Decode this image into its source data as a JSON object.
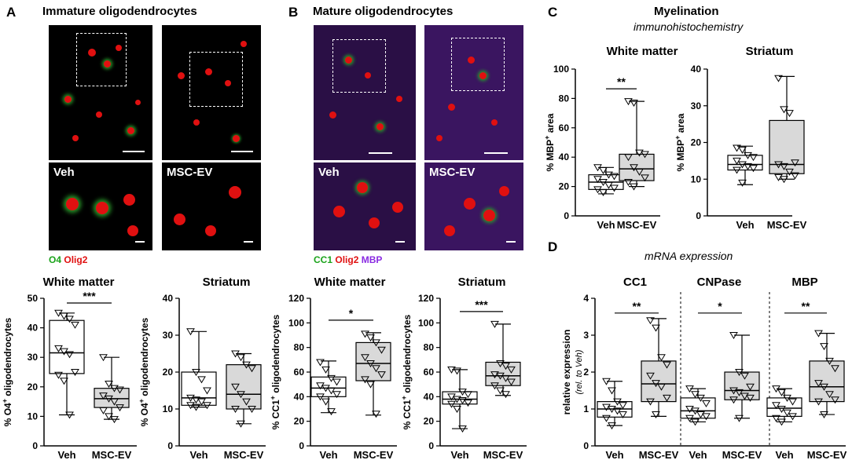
{
  "panels": {
    "A": {
      "letter": "A",
      "title": "Immature oligodendrocytes",
      "image_labels": [
        "Veh",
        "MSC-EV"
      ],
      "legend": [
        {
          "text": "O4",
          "color": "#1aa31a"
        },
        {
          "text": "Olig2",
          "color": "#e01010"
        }
      ]
    },
    "B": {
      "letter": "B",
      "title": "Mature oligodendrocytes",
      "image_labels": [
        "Veh",
        "MSC-EV"
      ],
      "legend": [
        {
          "text": "CC1",
          "color": "#1aa31a"
        },
        {
          "text": "Olig2",
          "color": "#e01010"
        },
        {
          "text": "MBP",
          "color": "#8a2be2"
        }
      ]
    },
    "C": {
      "letter": "C",
      "title": "Myelination",
      "subtitle": "immunohistochemistry"
    },
    "D": {
      "letter": "D",
      "subtitle": "mRNA expression"
    }
  },
  "chart_data": [
    {
      "id": "A1",
      "type": "box",
      "title": "White matter",
      "ylabel": "% O4+ oligodendrocytes",
      "ylim": [
        0,
        50
      ],
      "yticks": [
        0,
        10,
        20,
        30,
        40,
        50
      ],
      "categories": [
        "Veh",
        "MSC-EV"
      ],
      "significance": "***",
      "boxes": [
        {
          "min": 10.5,
          "q1": 24.5,
          "median": 31.5,
          "q3": 42.5,
          "max": 45,
          "fill": "#ffffff",
          "points": [
            45,
            44,
            43,
            41,
            33,
            32,
            31,
            25,
            24,
            22,
            10.5
          ]
        },
        {
          "min": 9,
          "q1": 13,
          "median": 16,
          "q3": 19.5,
          "max": 30,
          "fill": "#d9d9d9",
          "points": [
            30,
            21,
            19.5,
            19,
            17,
            16,
            15,
            13,
            12,
            10,
            9
          ]
        }
      ]
    },
    {
      "id": "A2",
      "type": "box",
      "title": "Striatum",
      "ylabel": "% O4+ oligodendrocytes",
      "ylim": [
        0,
        40
      ],
      "yticks": [
        0,
        10,
        20,
        30,
        40
      ],
      "categories": [
        "Veh",
        "MSC-EV"
      ],
      "significance": "",
      "boxes": [
        {
          "min": 10.5,
          "q1": 11,
          "median": 13,
          "q3": 20,
          "max": 31,
          "fill": "#ffffff",
          "points": [
            31,
            20,
            18,
            15,
            13,
            12.5,
            12,
            11,
            11,
            10.5
          ]
        },
        {
          "min": 6,
          "q1": 10,
          "median": 14,
          "q3": 22,
          "max": 25,
          "fill": "#d9d9d9",
          "points": [
            25,
            24,
            22,
            21,
            16,
            14,
            12,
            10,
            10,
            6
          ]
        }
      ]
    },
    {
      "id": "B1",
      "type": "box",
      "title": "White matter",
      "ylabel": "% CC1+ oligodendrocytes",
      "ylim": [
        0,
        120
      ],
      "yticks": [
        0,
        20,
        40,
        60,
        80,
        100,
        120
      ],
      "categories": [
        "Veh",
        "MSC-EV"
      ],
      "significance": "*",
      "boxes": [
        {
          "min": 27,
          "q1": 40,
          "median": 47,
          "q3": 56,
          "max": 69,
          "fill": "#ffffff",
          "points": [
            68,
            62,
            55,
            52,
            49,
            47,
            45,
            42,
            40,
            36,
            28
          ]
        },
        {
          "min": 25,
          "q1": 53,
          "median": 67,
          "q3": 84,
          "max": 92,
          "fill": "#d9d9d9",
          "points": [
            91,
            88,
            84,
            78,
            72,
            67,
            63,
            58,
            54,
            50,
            26
          ]
        }
      ]
    },
    {
      "id": "B2",
      "type": "box",
      "title": "Striatum",
      "ylabel": "% CC1+ oligodendrocytes",
      "ylim": [
        0,
        120
      ],
      "yticks": [
        0,
        20,
        40,
        60,
        80,
        100,
        120
      ],
      "categories": [
        "Veh",
        "MSC-EV"
      ],
      "significance": "***",
      "boxes": [
        {
          "min": 14,
          "q1": 34,
          "median": 38,
          "q3": 44,
          "max": 62,
          "fill": "#ffffff",
          "points": [
            62,
            61,
            44,
            42,
            40,
            38,
            37,
            35,
            34,
            30,
            14
          ]
        },
        {
          "min": 41,
          "q1": 49,
          "median": 57,
          "q3": 68,
          "max": 99,
          "fill": "#d9d9d9",
          "points": [
            99,
            67,
            65,
            62,
            58,
            57,
            55,
            52,
            49,
            45,
            42
          ]
        }
      ]
    },
    {
      "id": "C1",
      "type": "box",
      "title": "White matter",
      "ylabel": "% MBP+ area",
      "ylim": [
        0,
        100
      ],
      "yticks": [
        0,
        20,
        40,
        60,
        80,
        100
      ],
      "categories": [
        "Veh",
        "MSC-EV"
      ],
      "significance": "**",
      "boxes": [
        {
          "min": 15,
          "q1": 18,
          "median": 23,
          "q3": 28,
          "max": 33,
          "fill": "#ffffff",
          "points": [
            33,
            31,
            28,
            27,
            25,
            23,
            21,
            19,
            18,
            16
          ]
        },
        {
          "min": 20,
          "q1": 24,
          "median": 32,
          "q3": 42,
          "max": 78,
          "fill": "#d9d9d9",
          "points": [
            78,
            77,
            43,
            42,
            40,
            33,
            30,
            26,
            23,
            20
          ]
        }
      ]
    },
    {
      "id": "C2",
      "type": "box",
      "title": "Striatum",
      "ylabel": "% MBP+ area",
      "ylim": [
        0,
        40
      ],
      "yticks": [
        0,
        10,
        20,
        30,
        40
      ],
      "categories": [
        "Veh",
        "MSC-EV"
      ],
      "significance": "",
      "boxes": [
        {
          "min": 8.5,
          "q1": 12.5,
          "median": 14,
          "q3": 16.5,
          "max": 19,
          "fill": "#ffffff",
          "points": [
            18.5,
            18,
            16.5,
            16,
            15,
            14,
            13.5,
            13,
            12.5,
            9
          ]
        },
        {
          "min": 10,
          "q1": 11.5,
          "median": 14,
          "q3": 26,
          "max": 38,
          "fill": "#d9d9d9",
          "points": [
            37.5,
            29,
            28,
            14.5,
            14,
            13.5,
            12,
            11,
            10.5,
            10
          ]
        }
      ]
    },
    {
      "id": "D",
      "type": "box",
      "title": "",
      "ylabel": "relative expression",
      "ylabel2": "(rel. to Veh)",
      "ylim": [
        0,
        4
      ],
      "yticks": [
        0,
        1,
        2,
        3,
        4
      ],
      "groups": [
        {
          "name": "CC1",
          "significance": "**",
          "categories": [
            "Veh",
            "MSC-EV"
          ],
          "boxes": [
            {
              "min": 0.55,
              "q1": 0.78,
              "median": 1.0,
              "q3": 1.2,
              "max": 1.75,
              "fill": "#ffffff",
              "points": [
                1.75,
                1.5,
                1.2,
                1.1,
                1.05,
                1.0,
                0.95,
                0.85,
                0.75,
                0.55
              ]
            },
            {
              "min": 0.8,
              "q1": 1.2,
              "median": 1.68,
              "q3": 2.3,
              "max": 3.45,
              "fill": "#d9d9d9",
              "points": [
                3.4,
                3.2,
                2.4,
                2.2,
                1.9,
                1.7,
                1.6,
                1.3,
                1.2,
                0.85
              ]
            }
          ]
        },
        {
          "name": "CNPase",
          "significance": "*",
          "categories": [
            "Veh",
            "MSC-EV"
          ],
          "boxes": [
            {
              "min": 0.65,
              "q1": 0.75,
              "median": 0.95,
              "q3": 1.3,
              "max": 1.55,
              "fill": "#ffffff",
              "points": [
                1.55,
                1.4,
                1.3,
                1.15,
                1.0,
                0.95,
                0.85,
                0.8,
                0.75,
                0.65
              ]
            },
            {
              "min": 0.75,
              "q1": 1.25,
              "median": 1.5,
              "q3": 2.0,
              "max": 3.0,
              "fill": "#d9d9d9",
              "points": [
                3.0,
                2.0,
                1.9,
                1.6,
                1.5,
                1.45,
                1.35,
                1.3,
                1.25,
                0.75
              ]
            }
          ]
        },
        {
          "name": "MBP",
          "significance": "**",
          "categories": [
            "Veh",
            "MSC-EV"
          ],
          "boxes": [
            {
              "min": 0.65,
              "q1": 0.8,
              "median": 1.02,
              "q3": 1.3,
              "max": 1.55,
              "fill": "#ffffff",
              "points": [
                1.55,
                1.45,
                1.3,
                1.2,
                1.1,
                1.0,
                0.9,
                0.8,
                0.75,
                0.65
              ]
            },
            {
              "min": 0.85,
              "q1": 1.2,
              "median": 1.6,
              "q3": 2.3,
              "max": 3.05,
              "fill": "#d9d9d9",
              "points": [
                3.05,
                2.7,
                2.3,
                2.1,
                1.7,
                1.6,
                1.4,
                1.25,
                1.2,
                0.85
              ]
            }
          ]
        }
      ]
    }
  ]
}
